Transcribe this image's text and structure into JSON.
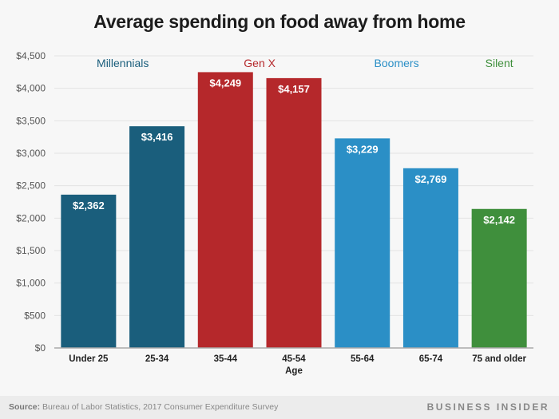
{
  "chart_data": {
    "type": "bar",
    "title": "Average spending on food away from home",
    "xlabel": "Age",
    "ylabel": "",
    "ylim": [
      0,
      4500
    ],
    "yticks": [
      0,
      500,
      1000,
      1500,
      2000,
      2500,
      3000,
      3500,
      4000,
      4500
    ],
    "ytick_labels": [
      "$0",
      "$500",
      "$1,000",
      "$1,500",
      "$2,000",
      "$2,500",
      "$3,000",
      "$3,500",
      "$4,000",
      "$4,500"
    ],
    "grid": true,
    "categories": [
      "Under 25",
      "25-34",
      "35-44",
      "45-54",
      "55-64",
      "65-74",
      "75 and older"
    ],
    "values": [
      2362,
      3416,
      4249,
      4157,
      3229,
      2769,
      2142
    ],
    "value_labels": [
      "$2,362",
      "$3,416",
      "$4,249",
      "$4,157",
      "$3,229",
      "$2,769",
      "$2,142"
    ],
    "groups": [
      {
        "name": "Millennials",
        "categories": [
          "Under 25",
          "25-34"
        ],
        "color": "#1a5e7c"
      },
      {
        "name": "Gen X",
        "categories": [
          "35-44",
          "45-54"
        ],
        "color": "#b5282b"
      },
      {
        "name": "Boomers",
        "categories": [
          "55-64",
          "65-74"
        ],
        "color": "#2b8fc6"
      },
      {
        "name": "Silent",
        "categories": [
          "75 and older"
        ],
        "color": "#3f8f3c"
      }
    ],
    "group_label_colors": [
      "#1a5e7c",
      "#b5282b",
      "#2b8fc6",
      "#3f8f3c"
    ]
  },
  "footer": {
    "source_prefix": "Source:",
    "source_text": " Bureau of Labor Statistics, 2017 Consumer Expenditure Survey",
    "brand": "BUSINESS INSIDER"
  }
}
